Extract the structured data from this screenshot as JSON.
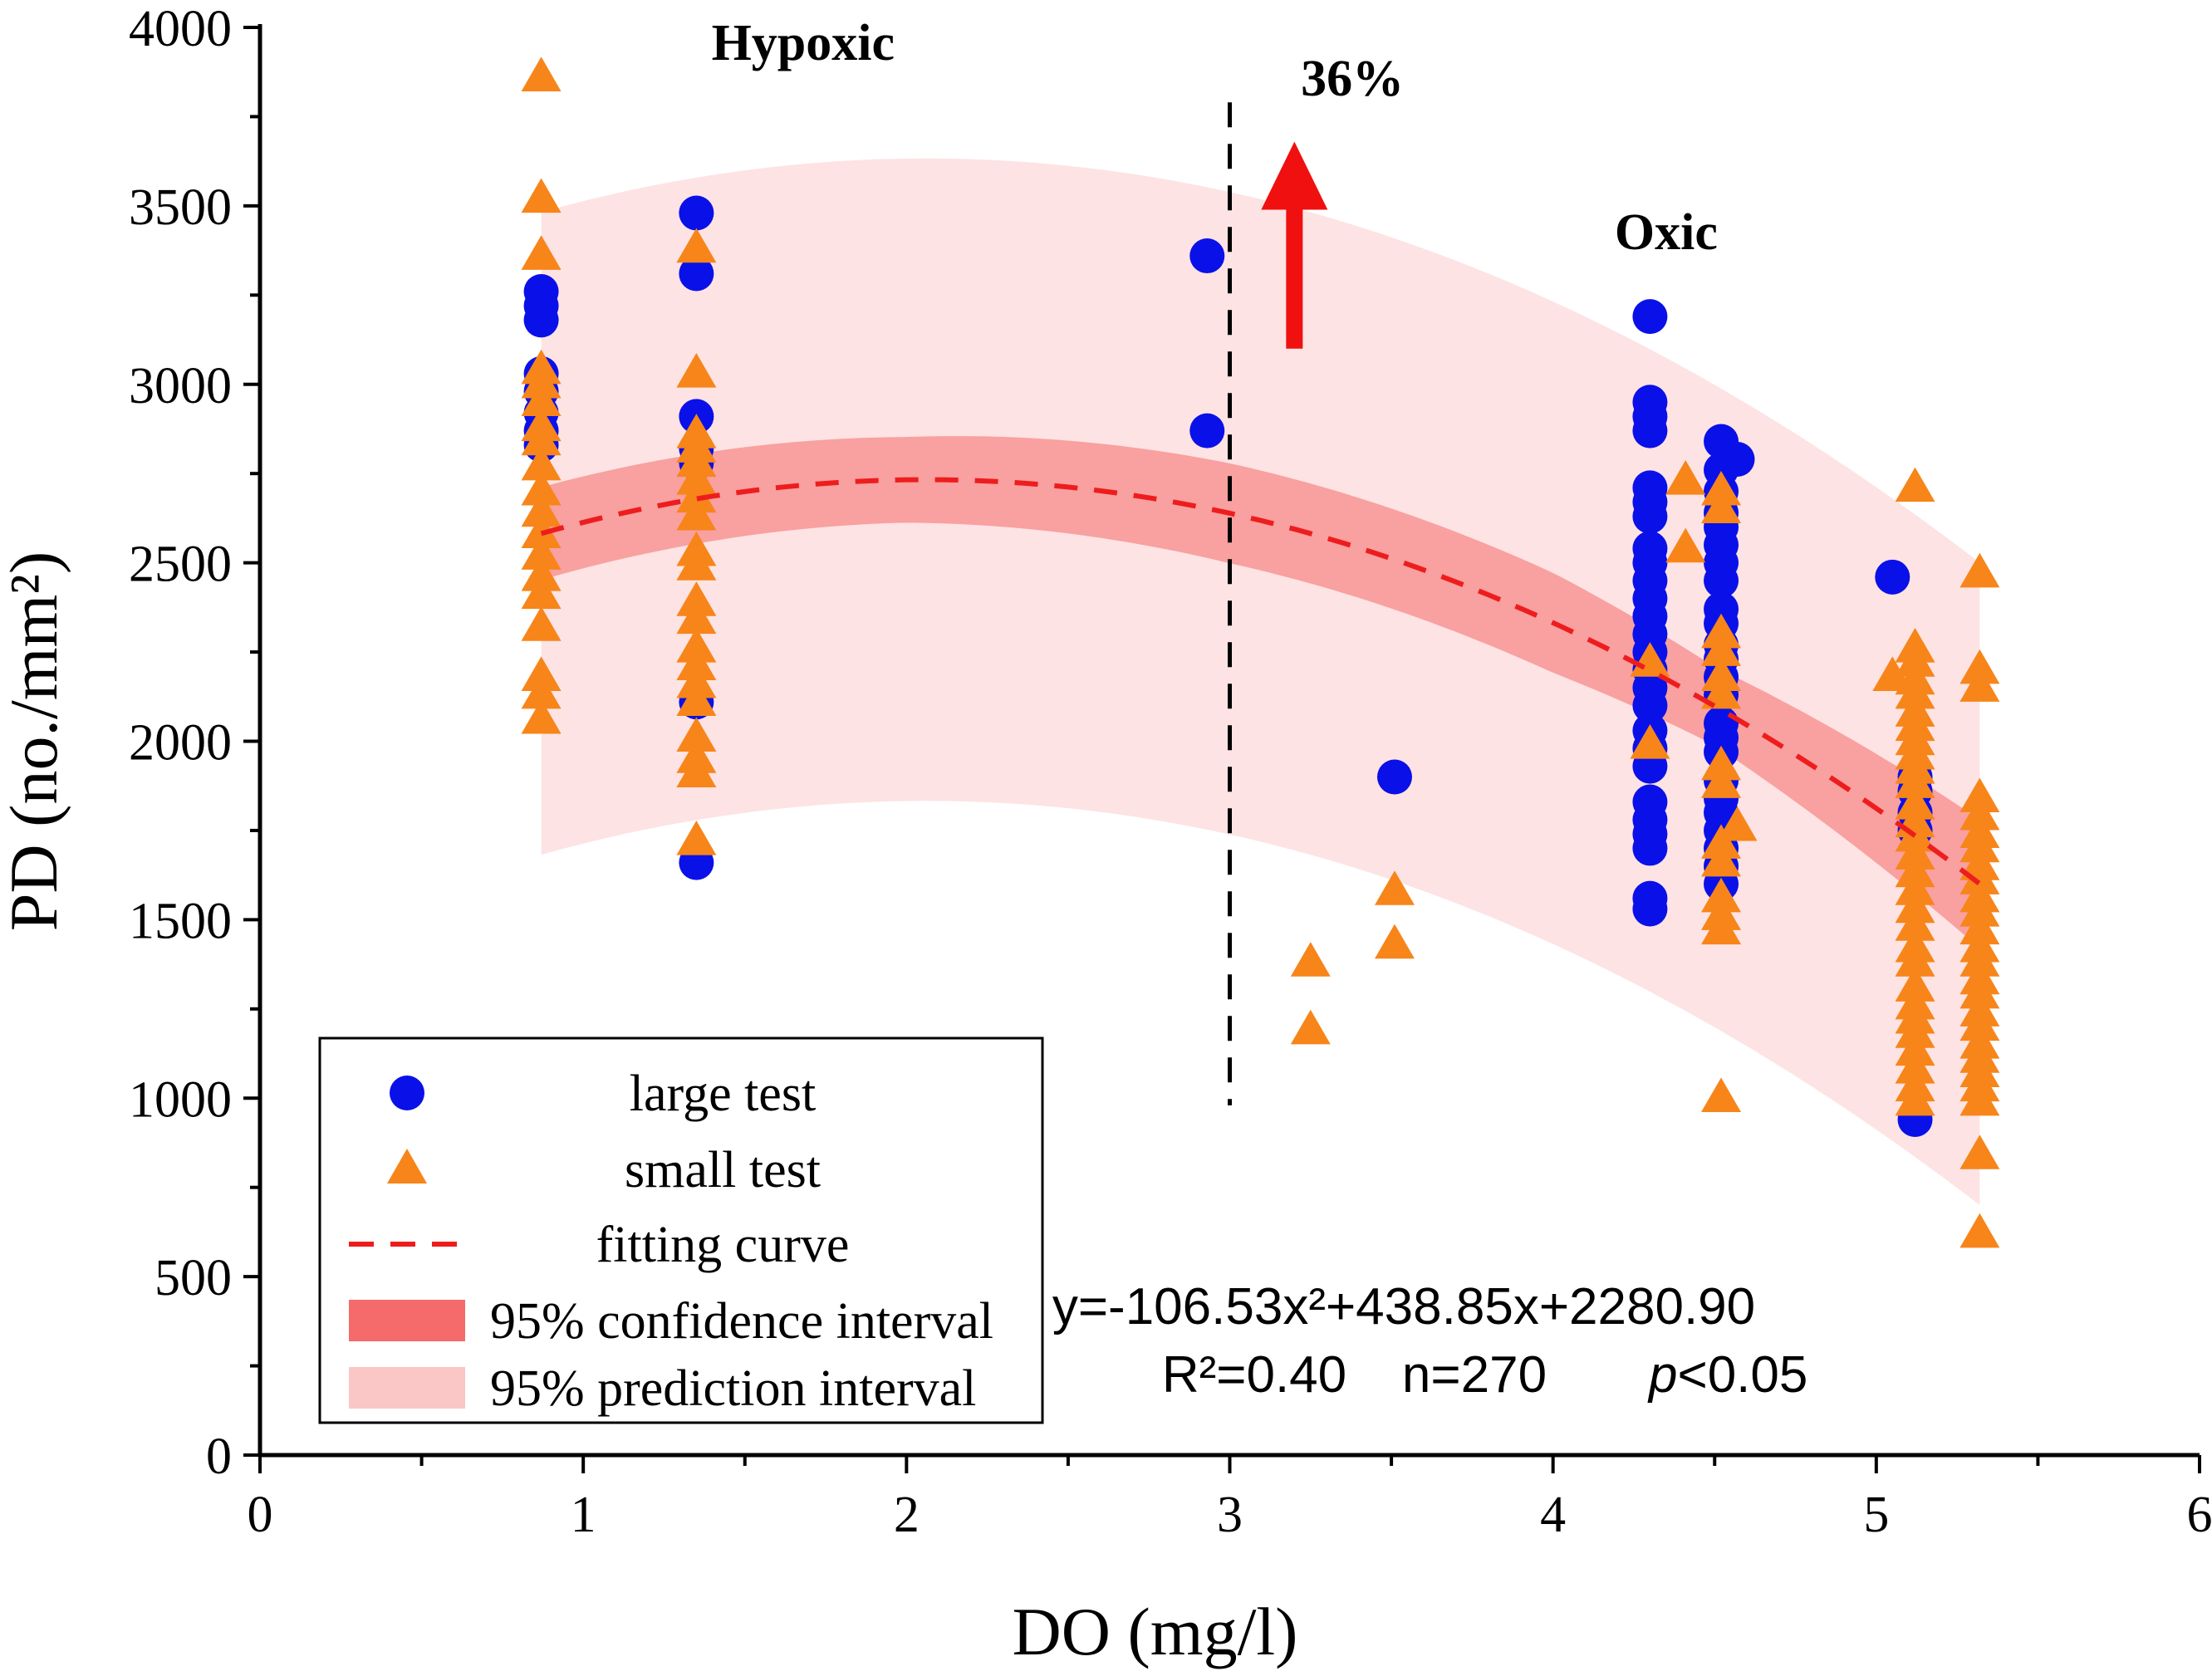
{
  "chart_data": {
    "type": "scatter",
    "title": "",
    "xlabel": "DO (mg/l)",
    "ylabel": "PD (no./mm²)",
    "xlim": [
      0,
      6
    ],
    "ylim": [
      0,
      4000
    ],
    "xticks": [
      0,
      1,
      2,
      3,
      4,
      5,
      6
    ],
    "yticks": [
      0,
      500,
      1000,
      1500,
      2000,
      2500,
      3000,
      3500,
      4000
    ],
    "xtick_labels": [
      "0",
      "1",
      "2",
      "3",
      "4",
      "5",
      "6"
    ],
    "ytick_labels": [
      "0",
      "500",
      "1000",
      "1500",
      "2000",
      "2500",
      "3000",
      "3500",
      "4000"
    ],
    "fit": {
      "a": -106.53,
      "b": 438.85,
      "c": 2280.9,
      "x_range": [
        0.87,
        5.32
      ],
      "ci_halfwidth_at": [
        [
          0.87,
          130
        ],
        [
          2.0,
          120
        ],
        [
          3.0,
          140
        ],
        [
          4.0,
          140
        ],
        [
          4.5,
          110
        ],
        [
          5.32,
          180
        ]
      ],
      "pi_halfwidth_at": [
        [
          0.87,
          900
        ],
        [
          2.0,
          900
        ],
        [
          3.0,
          900
        ],
        [
          4.0,
          900
        ],
        [
          5.32,
          900
        ]
      ]
    },
    "series": [
      {
        "name": "large test",
        "marker": "circle",
        "color": "#0a10e8",
        "points": [
          [
            0.87,
            3260
          ],
          [
            0.87,
            3220
          ],
          [
            0.87,
            3180
          ],
          [
            0.87,
            3030
          ],
          [
            0.87,
            2980
          ],
          [
            0.87,
            2920
          ],
          [
            0.87,
            2870
          ],
          [
            0.87,
            2830
          ],
          [
            1.35,
            3480
          ],
          [
            1.35,
            3310
          ],
          [
            1.35,
            2910
          ],
          [
            1.35,
            2820
          ],
          [
            1.35,
            2780
          ],
          [
            1.35,
            2110
          ],
          [
            1.35,
            1660
          ],
          [
            2.93,
            3360
          ],
          [
            2.93,
            2870
          ],
          [
            3.51,
            1900
          ],
          [
            4.3,
            3190
          ],
          [
            4.3,
            2950
          ],
          [
            4.3,
            2910
          ],
          [
            4.3,
            2870
          ],
          [
            4.3,
            2710
          ],
          [
            4.3,
            2670
          ],
          [
            4.3,
            2630
          ],
          [
            4.3,
            2540
          ],
          [
            4.3,
            2500
          ],
          [
            4.3,
            2450
          ],
          [
            4.3,
            2400
          ],
          [
            4.3,
            2350
          ],
          [
            4.3,
            2300
          ],
          [
            4.3,
            2250
          ],
          [
            4.3,
            2200
          ],
          [
            4.3,
            2150
          ],
          [
            4.3,
            2100
          ],
          [
            4.3,
            2030
          ],
          [
            4.3,
            1980
          ],
          [
            4.3,
            1930
          ],
          [
            4.3,
            1830
          ],
          [
            4.3,
            1780
          ],
          [
            4.3,
            1740
          ],
          [
            4.3,
            1700
          ],
          [
            4.3,
            1560
          ],
          [
            4.3,
            1530
          ],
          [
            4.52,
            2840
          ],
          [
            4.52,
            2760
          ],
          [
            4.52,
            2700
          ],
          [
            4.52,
            2640
          ],
          [
            4.52,
            2600
          ],
          [
            4.52,
            2550
          ],
          [
            4.52,
            2500
          ],
          [
            4.52,
            2450
          ],
          [
            4.52,
            2370
          ],
          [
            4.52,
            2330
          ],
          [
            4.52,
            2270
          ],
          [
            4.52,
            2230
          ],
          [
            4.52,
            2180
          ],
          [
            4.52,
            2130
          ],
          [
            4.52,
            2050
          ],
          [
            4.52,
            2010
          ],
          [
            4.52,
            1970
          ],
          [
            4.52,
            1890
          ],
          [
            4.52,
            1840
          ],
          [
            4.52,
            1800
          ],
          [
            4.52,
            1750
          ],
          [
            4.52,
            1700
          ],
          [
            4.52,
            1650
          ],
          [
            4.52,
            1600
          ],
          [
            4.57,
            2790
          ],
          [
            5.05,
            2460
          ],
          [
            5.12,
            1900
          ],
          [
            5.12,
            1860
          ],
          [
            5.12,
            1800
          ],
          [
            5.12,
            1750
          ],
          [
            5.12,
            940
          ]
        ]
      },
      {
        "name": "small test",
        "marker": "triangle",
        "color": "#f7851a",
        "points": [
          [
            0.87,
            3860
          ],
          [
            0.87,
            3520
          ],
          [
            0.87,
            3360
          ],
          [
            0.87,
            3040
          ],
          [
            0.87,
            3000
          ],
          [
            0.87,
            2950
          ],
          [
            0.87,
            2880
          ],
          [
            0.87,
            2840
          ],
          [
            0.87,
            2770
          ],
          [
            0.87,
            2700
          ],
          [
            0.87,
            2640
          ],
          [
            0.87,
            2580
          ],
          [
            0.87,
            2520
          ],
          [
            0.87,
            2460
          ],
          [
            0.87,
            2410
          ],
          [
            0.87,
            2320
          ],
          [
            0.87,
            2180
          ],
          [
            0.87,
            2130
          ],
          [
            0.87,
            2060
          ],
          [
            1.35,
            3380
          ],
          [
            1.35,
            3030
          ],
          [
            1.35,
            2860
          ],
          [
            1.35,
            2820
          ],
          [
            1.35,
            2780
          ],
          [
            1.35,
            2730
          ],
          [
            1.35,
            2680
          ],
          [
            1.35,
            2630
          ],
          [
            1.35,
            2530
          ],
          [
            1.35,
            2490
          ],
          [
            1.35,
            2390
          ],
          [
            1.35,
            2340
          ],
          [
            1.35,
            2260
          ],
          [
            1.35,
            2210
          ],
          [
            1.35,
            2160
          ],
          [
            1.35,
            2110
          ],
          [
            1.35,
            2010
          ],
          [
            1.35,
            1950
          ],
          [
            1.35,
            1910
          ],
          [
            1.35,
            1720
          ],
          [
            3.25,
            1380
          ],
          [
            3.25,
            1190
          ],
          [
            3.51,
            1580
          ],
          [
            3.51,
            1430
          ],
          [
            4.3,
            2220
          ],
          [
            4.3,
            1990
          ],
          [
            4.41,
            2730
          ],
          [
            4.41,
            2540
          ],
          [
            4.52,
            2700
          ],
          [
            4.52,
            2650
          ],
          [
            4.52,
            2300
          ],
          [
            4.52,
            2250
          ],
          [
            4.52,
            2180
          ],
          [
            4.52,
            2130
          ],
          [
            4.52,
            1930
          ],
          [
            4.52,
            1880
          ],
          [
            4.52,
            1710
          ],
          [
            4.52,
            1660
          ],
          [
            4.52,
            1560
          ],
          [
            4.52,
            1510
          ],
          [
            4.52,
            1470
          ],
          [
            4.52,
            1000
          ],
          [
            4.57,
            1760
          ],
          [
            5.05,
            2180
          ],
          [
            5.12,
            2710
          ],
          [
            5.12,
            2260
          ],
          [
            5.12,
            2220
          ],
          [
            5.12,
            2170
          ],
          [
            5.12,
            2130
          ],
          [
            5.12,
            2080
          ],
          [
            5.12,
            2040
          ],
          [
            5.12,
            2000
          ],
          [
            5.12,
            1960
          ],
          [
            5.12,
            1920
          ],
          [
            5.12,
            1880
          ],
          [
            5.12,
            1820
          ],
          [
            5.12,
            1770
          ],
          [
            5.12,
            1730
          ],
          [
            5.12,
            1680
          ],
          [
            5.12,
            1630
          ],
          [
            5.12,
            1580
          ],
          [
            5.12,
            1530
          ],
          [
            5.12,
            1480
          ],
          [
            5.12,
            1420
          ],
          [
            5.12,
            1380
          ],
          [
            5.12,
            1310
          ],
          [
            5.12,
            1260
          ],
          [
            5.12,
            1220
          ],
          [
            5.12,
            1180
          ],
          [
            5.12,
            1130
          ],
          [
            5.12,
            1080
          ],
          [
            5.12,
            1030
          ],
          [
            5.12,
            990
          ],
          [
            5.32,
            2470
          ],
          [
            5.32,
            2200
          ],
          [
            5.32,
            2150
          ],
          [
            5.32,
            1840
          ],
          [
            5.32,
            1790
          ],
          [
            5.32,
            1740
          ],
          [
            5.32,
            1700
          ],
          [
            5.32,
            1650
          ],
          [
            5.32,
            1610
          ],
          [
            5.32,
            1560
          ],
          [
            5.32,
            1520
          ],
          [
            5.32,
            1470
          ],
          [
            5.32,
            1420
          ],
          [
            5.32,
            1380
          ],
          [
            5.32,
            1330
          ],
          [
            5.32,
            1290
          ],
          [
            5.32,
            1240
          ],
          [
            5.32,
            1200
          ],
          [
            5.32,
            1150
          ],
          [
            5.32,
            1110
          ],
          [
            5.32,
            1070
          ],
          [
            5.32,
            1030
          ],
          [
            5.32,
            990
          ],
          [
            5.32,
            840
          ],
          [
            5.32,
            620
          ]
        ]
      }
    ],
    "threshold_line": {
      "x": 3.0,
      "y_range": [
        980,
        3790
      ]
    },
    "arrow": {
      "x": 3.2,
      "y_from": 3100,
      "y_to": 3680,
      "label": "36%"
    },
    "annotations": [
      {
        "text": "Hypoxic",
        "x": 1.68,
        "y": 3960
      },
      {
        "text": "Oxic",
        "x": 4.35,
        "y": 3430
      },
      {
        "text": "36%",
        "x": 3.22,
        "y": 3860
      }
    ],
    "equation": {
      "line1": "y=-106.53x²+438.85x+2280.90",
      "r2": "R²=0.40",
      "n": "n=270",
      "p_letter": "p",
      "p_rest": "<0.05"
    },
    "legend": {
      "position": "bottom-left",
      "items": [
        {
          "label": "large test",
          "kind": "circle",
          "color": "#0a10e8"
        },
        {
          "label": "small test",
          "kind": "triangle",
          "color": "#f7851a"
        },
        {
          "label": "fitting curve",
          "kind": "dash",
          "color": "#ee1d1d"
        },
        {
          "label": "95% confidence interval",
          "kind": "band",
          "color": "#f56a6a"
        },
        {
          "label": "95% prediction interval",
          "kind": "band",
          "color": "#fbc6c6"
        }
      ]
    },
    "colors": {
      "confidence_band": "#f9a0a0",
      "prediction_band": "#fde3e3",
      "fit_line": "#ee1d1d",
      "arrow": "#f01010",
      "axis": "#000000"
    }
  }
}
